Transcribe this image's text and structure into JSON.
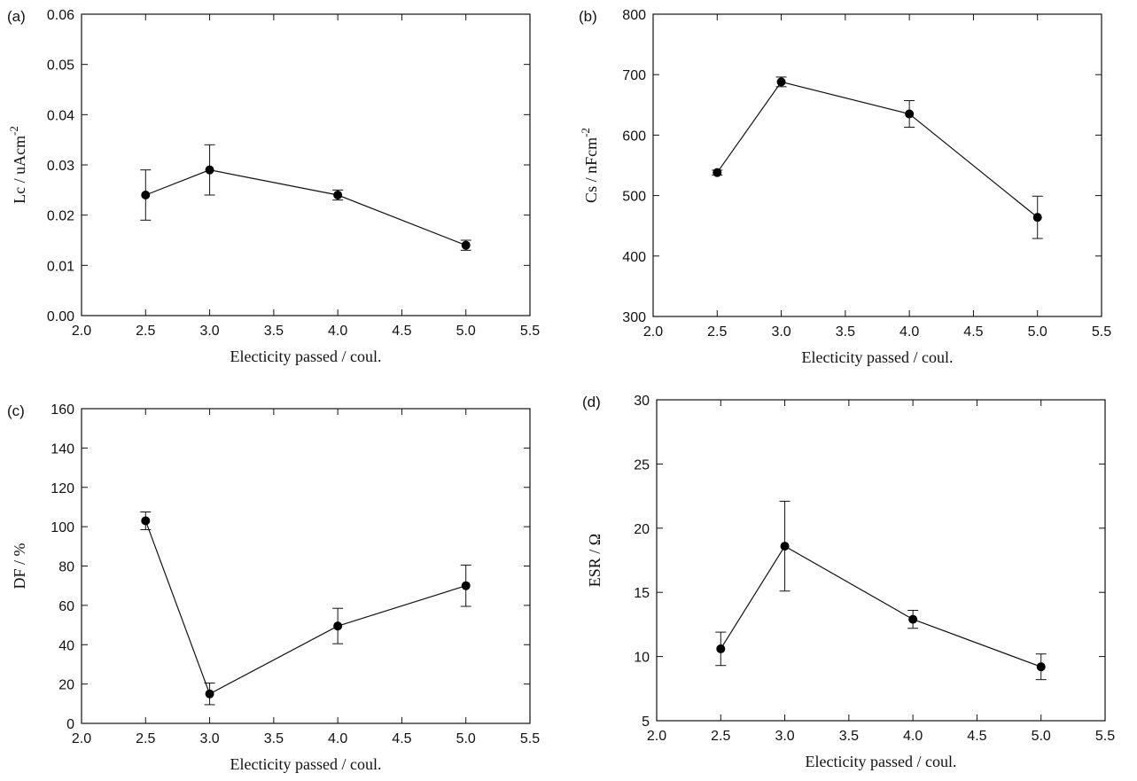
{
  "chart_data": [
    {
      "type": "line",
      "panel_label": "(a)",
      "xlabel": "Electicity passed / coul.",
      "ylabel": "Lc / uAcm",
      "ylabel_sup": "-2",
      "xlim": [
        2.0,
        5.5
      ],
      "ylim": [
        0.0,
        0.06
      ],
      "xticks": [
        "2.0",
        "2.5",
        "3.0",
        "3.5",
        "4.0",
        "4.5",
        "5.0",
        "5.5"
      ],
      "yticks": [
        "0.00",
        "0.01",
        "0.02",
        "0.03",
        "0.04",
        "0.05",
        "0.06"
      ],
      "grid": false,
      "series": [
        {
          "x": [
            2.5,
            3.0,
            4.0,
            5.0
          ],
          "y": [
            0.024,
            0.029,
            0.024,
            0.014
          ],
          "err": [
            0.005,
            0.005,
            0.001,
            0.001
          ]
        }
      ]
    },
    {
      "type": "line",
      "panel_label": "(b)",
      "xlabel": "Electicity  passed / coul.",
      "ylabel": "Cs / nFcm",
      "ylabel_sup": "-2",
      "xlim": [
        2.0,
        5.5
      ],
      "ylim": [
        300,
        800
      ],
      "xticks": [
        "2.0",
        "2.5",
        "3.0",
        "3.5",
        "4.0",
        "4.5",
        "5.0",
        "5.5"
      ],
      "yticks": [
        "300",
        "400",
        "500",
        "600",
        "700",
        "800"
      ],
      "grid": false,
      "series": [
        {
          "x": [
            2.5,
            3.0,
            4.0,
            5.0
          ],
          "y": [
            538,
            688,
            635,
            464
          ],
          "err": [
            4,
            8,
            22,
            35
          ]
        }
      ]
    },
    {
      "type": "line",
      "panel_label": "(c)",
      "xlabel": "Electicity passed / coul.",
      "ylabel": "DF / %",
      "ylabel_sup": "",
      "xlim": [
        2.0,
        5.5
      ],
      "ylim": [
        0,
        160
      ],
      "xticks": [
        "2.0",
        "2.5",
        "3.0",
        "3.5",
        "4.0",
        "4.5",
        "5.0",
        "5.5"
      ],
      "yticks": [
        "0",
        "20",
        "40",
        "60",
        "80",
        "100",
        "120",
        "140",
        "160"
      ],
      "grid": false,
      "series": [
        {
          "x": [
            2.5,
            3.0,
            4.0,
            5.0
          ],
          "y": [
            103,
            15,
            49.5,
            70
          ],
          "err": [
            4.5,
            5.5,
            9,
            10.5
          ]
        }
      ]
    },
    {
      "type": "line",
      "panel_label": "(d)",
      "xlabel": "Electicity passed / coul.",
      "ylabel": "ESR / Ω",
      "ylabel_sup": "",
      "xlim": [
        2.0,
        5.5
      ],
      "ylim": [
        5,
        30
      ],
      "xticks": [
        "2.0",
        "2.5",
        "3.0",
        "3.5",
        "4.0",
        "4.5",
        "5.0",
        "5.5"
      ],
      "yticks": [
        "5",
        "10",
        "15",
        "20",
        "25",
        "30"
      ],
      "grid": false,
      "series": [
        {
          "x": [
            2.5,
            3.0,
            4.0,
            5.0
          ],
          "y": [
            10.6,
            18.6,
            12.9,
            9.2
          ],
          "err": [
            1.3,
            3.5,
            0.7,
            1.0
          ]
        }
      ]
    }
  ]
}
